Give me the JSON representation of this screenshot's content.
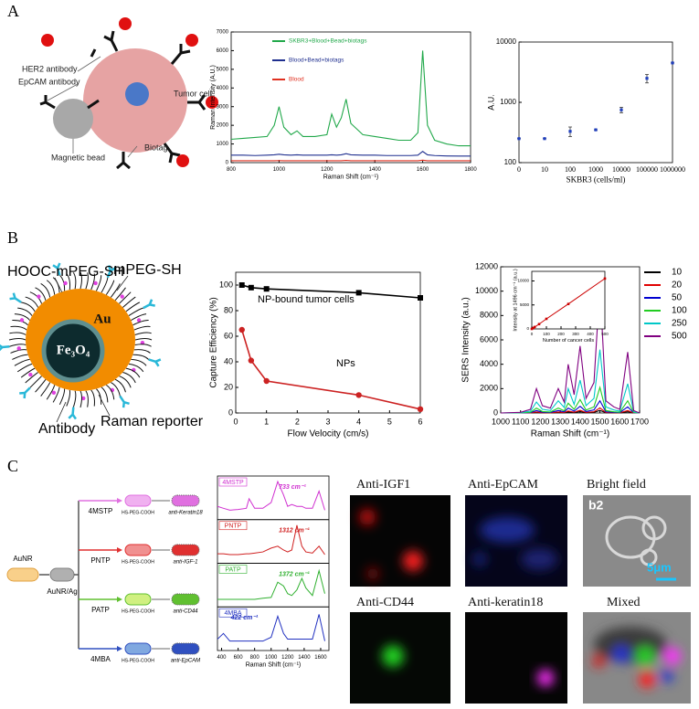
{
  "panel_labels": [
    "A",
    "B",
    "C"
  ],
  "diagram_a": {
    "her2": "HER2 antibody",
    "epcam": "EpCAM antibody",
    "tumor": "Tumor cell",
    "biotag": "Biotag",
    "bead": "Magnetic bead"
  },
  "diagram_b": {
    "hooc": "HOOC-mPEG-SH",
    "mpeg": "mPEG-SH",
    "au": "Au",
    "core": "Fe₃O₄",
    "antibody": "Antibody",
    "reporter": "Raman reporter"
  },
  "diagram_c": {
    "start": "AuNR",
    "coated": "AuNR/Ag",
    "rows": [
      {
        "reporter": "4MSTP",
        "linker": "HS-PEG-COOH",
        "antibody": "anti-Keratin18"
      },
      {
        "reporter": "PNTP",
        "linker": "HS-PEG-COOH",
        "antibody": "anti-IGF-1"
      },
      {
        "reporter": "PATP",
        "linker": "HS-PEG-COOH",
        "antibody": "anti-CD44"
      },
      {
        "reporter": "4MBA",
        "linker": "HS-PEG-COOH",
        "antibody": "anti-EpCAM"
      }
    ]
  },
  "images": {
    "labels": [
      "Anti-IGF1",
      "Anti-EpCAM",
      "Bright field",
      "Anti-CD44",
      "Anti-keratin18",
      "Mixed"
    ],
    "id": "b2",
    "scale": "5μm"
  },
  "chart_data": [
    {
      "type": "line",
      "xlabel": "Raman Shift (cm⁻¹)",
      "ylabel": "Raman Intensity (A.U.)",
      "x": [
        800,
        850,
        900,
        950,
        980,
        1000,
        1020,
        1050,
        1075,
        1100,
        1150,
        1200,
        1220,
        1240,
        1260,
        1280,
        1300,
        1350,
        1400,
        1450,
        1500,
        1550,
        1580,
        1600,
        1620,
        1650,
        1700,
        1750,
        1800
      ],
      "series": [
        {
          "name": "SKBR3+Blood+Bead+biotags",
          "color": "#21a84a",
          "values": [
            1250,
            1300,
            1350,
            1400,
            2000,
            3000,
            1900,
            1500,
            1700,
            1400,
            1400,
            1500,
            2600,
            1900,
            2400,
            3400,
            2100,
            1500,
            1400,
            1300,
            1200,
            1200,
            1600,
            6000,
            2000,
            1200,
            1000,
            900,
            900
          ]
        },
        {
          "name": "Blood+Bead+biotags",
          "color": "#1f2f8f",
          "values": [
            400,
            400,
            380,
            400,
            420,
            450,
            420,
            400,
            420,
            400,
            400,
            400,
            420,
            400,
            420,
            480,
            420,
            400,
            400,
            380,
            380,
            380,
            400,
            600,
            420,
            380,
            360,
            350,
            350
          ]
        },
        {
          "name": "Blood",
          "color": "#e03020",
          "values": [
            100,
            100,
            100,
            100,
            100,
            110,
            100,
            100,
            100,
            100,
            100,
            100,
            100,
            100,
            100,
            120,
            100,
            100,
            100,
            100,
            100,
            100,
            100,
            130,
            100,
            100,
            100,
            100,
            100
          ]
        }
      ],
      "xlim": [
        800,
        1800
      ],
      "xticks": [
        800,
        1000,
        1200,
        1400,
        1600,
        1800
      ],
      "ylim": [
        0,
        7000
      ],
      "yticks": [
        0,
        1000,
        2000,
        3000,
        4000,
        5000,
        6000,
        7000
      ],
      "legend": "upper left"
    },
    {
      "type": "scatter",
      "xlabel": "SKBR3 (cells/ml)",
      "ylabel": "A.U.",
      "color": "#1f3fbf",
      "categories": [
        "0",
        "10",
        "100",
        "1000",
        "10000",
        "100000",
        "1000000"
      ],
      "values": [
        250,
        250,
        330,
        350,
        750,
        2500,
        4500
      ],
      "errors": [
        0,
        0,
        60,
        0,
        80,
        400,
        0
      ],
      "ylim": [
        100,
        10000
      ],
      "yticks": [
        100,
        1000,
        10000
      ],
      "log_y": true
    },
    {
      "type": "line",
      "xlabel": "Flow Velocity (cm/s)",
      "ylabel": "Capture Efficiency (%)",
      "x": [
        0.2,
        0.5,
        1,
        4,
        6
      ],
      "series": [
        {
          "color": "#000000",
          "marker": "square",
          "values": [
            100,
            98,
            97,
            94,
            90
          ]
        },
        {
          "color": "#cc2222",
          "marker": "circle",
          "values": [
            65,
            41,
            25,
            14,
            3
          ]
        }
      ],
      "annotations": [
        "NP-bound tumor cells",
        "NPs"
      ],
      "xlim": [
        0,
        6
      ],
      "xticks": [
        0,
        1,
        2,
        3,
        4,
        5,
        6
      ],
      "ylim": [
        0,
        110
      ],
      "yticks": [
        0,
        20,
        40,
        60,
        80,
        100
      ]
    },
    {
      "type": "line",
      "xlabel": "Raman Shift (cm⁻¹)",
      "ylabel": "SERS Intensity (a.u.)",
      "x": [
        1000,
        1100,
        1150,
        1180,
        1210,
        1250,
        1290,
        1320,
        1340,
        1370,
        1400,
        1430,
        1470,
        1500,
        1530,
        1570,
        1600,
        1640,
        1670,
        1700
      ],
      "series": [
        {
          "name": "10",
          "color": "#000000",
          "values": [
            0,
            1,
            6,
            40,
            12,
            8,
            40,
            18,
            80,
            30,
            110,
            24,
            50,
            210,
            20,
            10,
            6,
            100,
            4,
            0
          ]
        },
        {
          "name": "20",
          "color": "#e00000",
          "values": [
            0,
            2,
            12,
            80,
            24,
            16,
            80,
            36,
            160,
            60,
            220,
            48,
            100,
            420,
            40,
            20,
            12,
            200,
            8,
            0
          ]
        },
        {
          "name": "50",
          "color": "#0000d0",
          "values": [
            0,
            5,
            30,
            200,
            60,
            40,
            200,
            90,
            400,
            150,
            550,
            120,
            250,
            1000,
            100,
            50,
            30,
            500,
            20,
            0
          ]
        },
        {
          "name": "100",
          "color": "#22cc22",
          "values": [
            0,
            10,
            60,
            400,
            120,
            80,
            400,
            180,
            800,
            300,
            1100,
            240,
            500,
            2100,
            200,
            100,
            60,
            1000,
            40,
            0
          ]
        },
        {
          "name": "250",
          "color": "#00c8c8",
          "values": [
            0,
            30,
            150,
            900,
            300,
            200,
            1000,
            450,
            2000,
            700,
            2700,
            600,
            1200,
            5200,
            500,
            250,
            150,
            2400,
            100,
            0
          ]
        },
        {
          "name": "500",
          "color": "#800080",
          "values": [
            0,
            50,
            300,
            2000,
            600,
            400,
            2000,
            900,
            4000,
            1500,
            5500,
            1200,
            2500,
            10500,
            1000,
            500,
            300,
            5000,
            200,
            0
          ]
        }
      ],
      "xlim": [
        1000,
        1700
      ],
      "xticks": [
        1000,
        1100,
        1200,
        1300,
        1400,
        1500,
        1600,
        1700
      ],
      "ylim": [
        0,
        12000
      ],
      "yticks": [
        0,
        2000,
        4000,
        6000,
        8000,
        10000,
        12000
      ],
      "legend": "right",
      "inset": {
        "xlabel": "Number of cancer cells",
        "ylabel": "Intensity at 1496 cm⁻¹ (a.u.)",
        "color": "#cc0000",
        "x": [
          0,
          10,
          20,
          50,
          100,
          250,
          500
        ],
        "values": [
          0,
          200,
          400,
          1000,
          2100,
          5200,
          10500
        ],
        "xlim": [
          0,
          500
        ],
        "xticks": [
          0,
          100,
          200,
          300,
          400,
          500
        ],
        "ylim": [
          0,
          12000
        ],
        "yticks": [
          0,
          5000,
          10000
        ]
      }
    },
    {
      "type": "line",
      "xlabel": "Raman Shift (cm⁻¹)",
      "x": [
        350,
        422,
        500,
        600,
        700,
        733,
        800,
        900,
        1000,
        1080,
        1150,
        1200,
        1250,
        1312,
        1372,
        1420,
        1500,
        1580,
        1650
      ],
      "series": [
        {
          "name": "4MSTP",
          "color": "#d030d0",
          "annotation": "733 cm⁻¹",
          "values": [
            30,
            25,
            20,
            22,
            25,
            50,
            25,
            25,
            40,
            95,
            60,
            30,
            35,
            30,
            30,
            25,
            25,
            70,
            20
          ]
        },
        {
          "name": "PNTP",
          "color": "#d02020",
          "annotation": "1312 cm⁻¹",
          "values": [
            20,
            20,
            18,
            18,
            20,
            20,
            22,
            25,
            35,
            40,
            30,
            25,
            30,
            95,
            40,
            25,
            22,
            40,
            18
          ]
        },
        {
          "name": "PATP",
          "color": "#30b030",
          "annotation": "1372 cm⁻¹",
          "values": [
            15,
            15,
            15,
            15,
            15,
            15,
            15,
            18,
            20,
            60,
            50,
            30,
            25,
            40,
            70,
            45,
            25,
            90,
            30
          ]
        },
        {
          "name": "4MBA",
          "color": "#2030c0",
          "annotation": "422 cm⁻¹",
          "values": [
            25,
            40,
            20,
            20,
            20,
            20,
            20,
            20,
            30,
            85,
            40,
            25,
            25,
            25,
            25,
            25,
            25,
            90,
            20
          ]
        }
      ],
      "xlim": [
        350,
        1700
      ],
      "xticks": [
        400,
        600,
        800,
        1000,
        1200,
        1400,
        1600
      ],
      "ylim": [
        0,
        100
      ]
    }
  ]
}
